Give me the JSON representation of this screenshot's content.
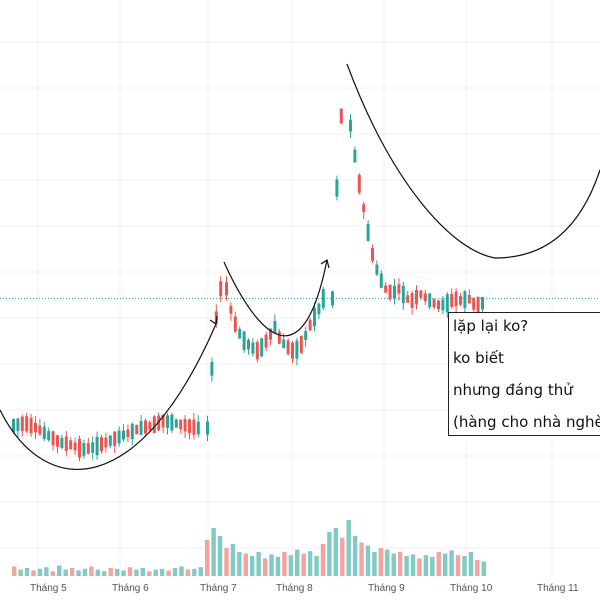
{
  "chart_data": {
    "type": "candlestick",
    "title": "",
    "xlabel": "",
    "ylabel": "",
    "x_ticks": [
      "Tháng 5",
      "Tháng 6",
      "Tháng 7",
      "Tháng 8",
      "Tháng 9",
      "Tháng 10",
      "Tháng 11"
    ],
    "y_range": [
      0,
      100
    ],
    "grid": true,
    "current_price_line": 42,
    "colors": {
      "up": "#26a69a",
      "down": "#ef5350",
      "up_volume": "#80cbc4",
      "down_volume": "#f5a3a1",
      "drawing": "#111111",
      "price_line": "#26a69a"
    },
    "segments": [
      {
        "name": "",
        "start": 14,
        "end": 17,
        "peak": 16.5,
        "trough": 15,
        "jitter": 3.2
      },
      {
        "name": "",
        "start": 17,
        "end": 42,
        "jitter": 4.0
      },
      {
        "name": "",
        "start": 42,
        "end": 43,
        "peak": 44,
        "trough": 31,
        "jitter": 3.5
      },
      {
        "name": "",
        "start": 43,
        "end": 80,
        "jitter": 4.5
      },
      {
        "name": "",
        "start": 80,
        "end": 41,
        "peak": 80,
        "trough": 39.5,
        "jitter": 4.0
      }
    ],
    "volume_levels": [
      0.12,
      0.08,
      0.1,
      0.07,
      0.09,
      0.11,
      0.06,
      0.13,
      0.08,
      0.1,
      0.07,
      0.09,
      0.12,
      0.08,
      0.06,
      0.1,
      0.09,
      0.07,
      0.11,
      0.08,
      0.1,
      0.06,
      0.08,
      0.09,
      0.07,
      0.1,
      0.12,
      0.08,
      0.09,
      0.11,
      0.45,
      0.6,
      0.5,
      0.35,
      0.4,
      0.3,
      0.28,
      0.25,
      0.3,
      0.22,
      0.27,
      0.24,
      0.3,
      0.26,
      0.33,
      0.28,
      0.31,
      0.25,
      0.4,
      0.55,
      0.6,
      0.48,
      0.7,
      0.5,
      0.42,
      0.38,
      0.3,
      0.35,
      0.33,
      0.28,
      0.3,
      0.25,
      0.27,
      0.22,
      0.26,
      0.24,
      0.3,
      0.28,
      0.32,
      0.26,
      0.25,
      0.3,
      0.2,
      0.18
    ],
    "annotations": [
      "lặp lại ko?",
      "ko biết",
      "nhưng đáng thử",
      "(hàng cho nhà nghèo)"
    ]
  }
}
